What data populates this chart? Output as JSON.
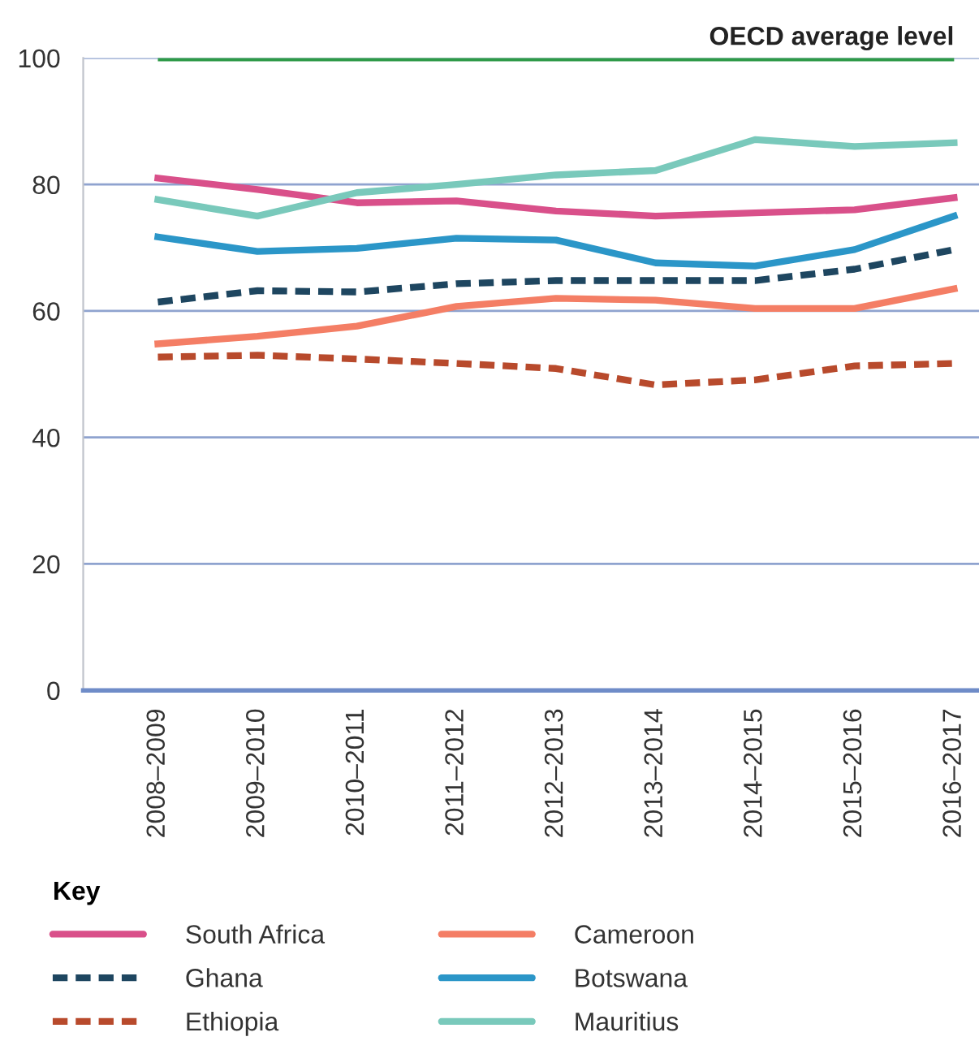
{
  "chart_data": {
    "type": "line",
    "categories": [
      "2008–2009",
      "2009–2010",
      "2010–2011",
      "2011–2012",
      "2012–2013",
      "2013–2014",
      "2014–2015",
      "2015–2016",
      "2016–2017"
    ],
    "series": [
      {
        "name": "South Africa",
        "color": "#d9508a",
        "line_style": "solid",
        "values": [
          81,
          79.2,
          77.1,
          77.4,
          75.8,
          75,
          75.5,
          76,
          77.9
        ]
      },
      {
        "name": "Ghana",
        "color": "#1e4660",
        "line_style": "dashed",
        "values": [
          61.4,
          63.2,
          63,
          64.3,
          64.8,
          64.8,
          64.8,
          66.6,
          69.7
        ]
      },
      {
        "name": "Ethiopia",
        "color": "#b84a2c",
        "line_style": "dashed",
        "values": [
          52.7,
          53,
          52.4,
          51.7,
          50.9,
          48.3,
          49.1,
          51.3,
          51.7
        ]
      },
      {
        "name": "Cameroon",
        "color": "#f47e65",
        "line_style": "solid",
        "values": [
          54.8,
          56,
          57.6,
          60.7,
          62,
          61.7,
          60.4,
          60.4,
          63.5
        ]
      },
      {
        "name": "Botswana",
        "color": "#2b96c8",
        "line_style": "solid",
        "values": [
          71.7,
          69.4,
          69.9,
          71.5,
          71.2,
          67.6,
          67.1,
          69.7,
          75
        ]
      },
      {
        "name": "Mauritius",
        "color": "#79c9bb",
        "line_style": "solid",
        "values": [
          77.6,
          75,
          78.7,
          80,
          81.5,
          82.2,
          87.1,
          86,
          86.6
        ]
      }
    ],
    "ref_lines": [
      {
        "axis": "y",
        "value": 100,
        "label": "OECD average level",
        "color": "#2e9a48"
      }
    ],
    "ylim": [
      0,
      100
    ],
    "yticks": [
      0,
      20,
      40,
      60,
      80,
      100
    ],
    "grid": "y",
    "legend": "bottom",
    "legend_title": "Key",
    "marker": "none"
  }
}
